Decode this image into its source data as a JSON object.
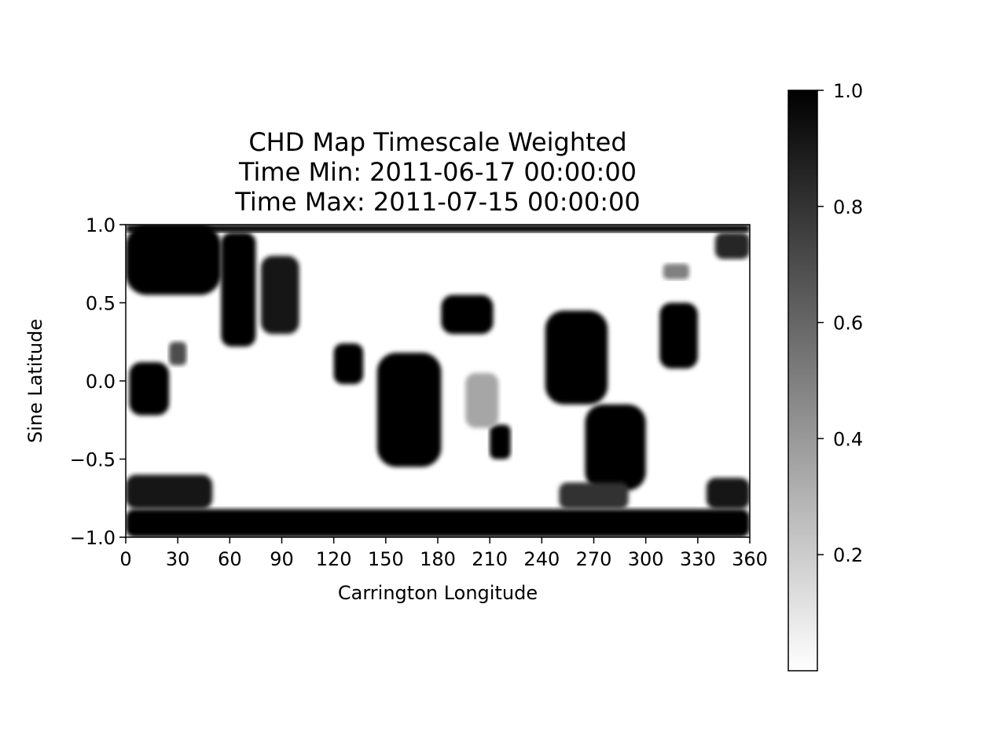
{
  "title": {
    "line1": "CHD Map Timescale Weighted",
    "line2": "Time Min: 2011-06-17 00:00:00",
    "line3": "Time Max: 2011-07-15 00:00:00"
  },
  "chart_data": {
    "type": "heatmap",
    "title": "CHD Map Timescale Weighted\nTime Min: 2011-06-17 00:00:00\nTime Max: 2011-07-15 00:00:00",
    "xlabel": "Carrington Longitude",
    "ylabel": "Sine Latitude",
    "xlim": [
      0,
      360
    ],
    "ylim": [
      -1.0,
      1.0
    ],
    "xticks": [
      0,
      30,
      60,
      90,
      120,
      150,
      180,
      210,
      240,
      270,
      300,
      330,
      360
    ],
    "xtick_labels": [
      "0",
      "30",
      "60",
      "90",
      "120",
      "150",
      "180",
      "210",
      "240",
      "270",
      "300",
      "330",
      "360"
    ],
    "yticks": [
      1.0,
      0.5,
      0.0,
      -0.5,
      -1.0
    ],
    "ytick_labels": [
      "1.0",
      "0.5",
      "0.0",
      "−0.5",
      "−1.0"
    ],
    "colormap": "Greys",
    "colorbar": {
      "range": [
        0.0,
        1.0
      ],
      "ticks": [
        1.0,
        0.8,
        0.6,
        0.4,
        0.2
      ],
      "tick_labels": [
        "1.0",
        "0.8",
        "0.6",
        "0.4",
        "0.2"
      ]
    },
    "regions": [
      {
        "lon": [
          0,
          360
        ],
        "lat": [
          0.95,
          1.0
        ],
        "value": 1.0
      },
      {
        "lon": [
          0,
          360
        ],
        "lat": [
          -1.0,
          -0.82
        ],
        "value": 1.0
      },
      {
        "lon": [
          0,
          55
        ],
        "lat": [
          0.55,
          1.0
        ],
        "value": 1.0
      },
      {
        "lon": [
          55,
          75
        ],
        "lat": [
          0.22,
          0.95
        ],
        "value": 1.0
      },
      {
        "lon": [
          78,
          100
        ],
        "lat": [
          0.3,
          0.8
        ],
        "value": 0.9
      },
      {
        "lon": [
          2,
          25
        ],
        "lat": [
          -0.22,
          0.12
        ],
        "value": 1.0
      },
      {
        "lon": [
          120,
          137
        ],
        "lat": [
          -0.02,
          0.24
        ],
        "value": 1.0
      },
      {
        "lon": [
          145,
          182
        ],
        "lat": [
          -0.55,
          0.18
        ],
        "value": 1.0
      },
      {
        "lon": [
          182,
          212
        ],
        "lat": [
          0.3,
          0.55
        ],
        "value": 1.0
      },
      {
        "lon": [
          210,
          222
        ],
        "lat": [
          -0.5,
          -0.28
        ],
        "value": 1.0
      },
      {
        "lon": [
          242,
          278
        ],
        "lat": [
          -0.15,
          0.45
        ],
        "value": 1.0
      },
      {
        "lon": [
          265,
          300
        ],
        "lat": [
          -0.7,
          -0.15
        ],
        "value": 1.0
      },
      {
        "lon": [
          308,
          330
        ],
        "lat": [
          0.08,
          0.5
        ],
        "value": 1.0
      },
      {
        "lon": [
          0,
          50
        ],
        "lat": [
          -0.82,
          -0.6
        ],
        "value": 0.9
      },
      {
        "lon": [
          250,
          290
        ],
        "lat": [
          -0.82,
          -0.65
        ],
        "value": 0.8
      },
      {
        "lon": [
          335,
          360
        ],
        "lat": [
          -0.82,
          -0.62
        ],
        "value": 0.9
      },
      {
        "lon": [
          340,
          360
        ],
        "lat": [
          0.78,
          0.95
        ],
        "value": 0.85
      },
      {
        "lon": [
          310,
          325
        ],
        "lat": [
          0.65,
          0.75
        ],
        "value": 0.5
      },
      {
        "lon": [
          25,
          35
        ],
        "lat": [
          0.1,
          0.25
        ],
        "value": 0.7
      },
      {
        "lon": [
          196,
          215
        ],
        "lat": [
          -0.3,
          0.05
        ],
        "value": 0.35
      }
    ]
  }
}
